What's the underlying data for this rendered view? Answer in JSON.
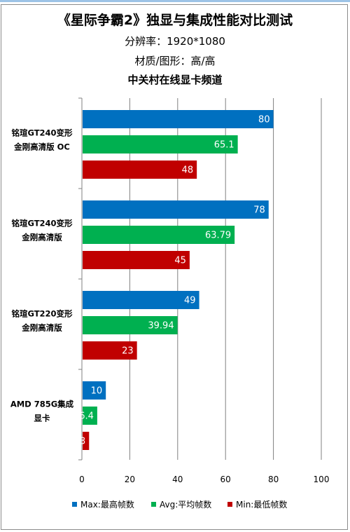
{
  "chart_data": {
    "type": "bar",
    "orientation": "horizontal",
    "title": "《星际争霸2》独显与集成性能对比测试",
    "subtitles": [
      "分辨率：1920*1080",
      "材质/图形：高/高",
      "中关村在线显卡频道"
    ],
    "categories": [
      "铭瑄GT240变形\n金刚高清版 OC",
      "铭瑄GT240变形\n金刚高清版",
      "铭瑄GT220变形\n金刚高清版",
      "AMD 785G集成\n显卡"
    ],
    "series": [
      {
        "name": "Max:最高帧数",
        "color": "#0070c0",
        "values": [
          80,
          78,
          49,
          10
        ]
      },
      {
        "name": "Avg:平均帧数",
        "color": "#00b050",
        "values": [
          65.1,
          63.79,
          39.94,
          6.4
        ]
      },
      {
        "name": "Min:最低帧数",
        "color": "#c00000",
        "values": [
          48,
          45,
          23,
          3
        ]
      }
    ],
    "data_labels": [
      [
        "80",
        "65.1",
        "48"
      ],
      [
        "78",
        "63.79",
        "45"
      ],
      [
        "49",
        "39.94",
        "23"
      ],
      [
        "10",
        "6.4",
        "3"
      ]
    ],
    "xlim": [
      0,
      100
    ],
    "xticks": [
      0,
      20,
      40,
      60,
      80,
      100
    ],
    "grid": "vertical",
    "legend_position": "bottom"
  },
  "colors": {
    "topline": "#9dc3e6",
    "grid": "#808080"
  }
}
